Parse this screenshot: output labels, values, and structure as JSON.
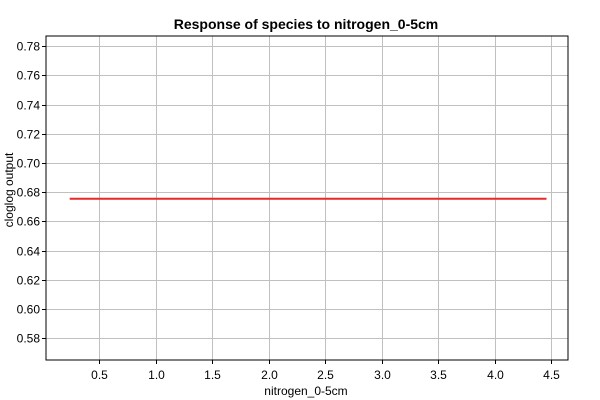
{
  "chart_data": {
    "type": "line",
    "title": "Response of species to nitrogen_0-5cm",
    "xlabel": "nitrogen_0-5cm",
    "ylabel": "cloglog output",
    "xlim": [
      0.03,
      4.65
    ],
    "ylim": [
      0.565,
      0.787
    ],
    "x_ticks": [
      0.5,
      1.0,
      1.5,
      2.0,
      2.5,
      3.0,
      3.5,
      4.0,
      4.5
    ],
    "x_tick_labels": [
      "0.5",
      "1.0",
      "1.5",
      "2.0",
      "2.5",
      "3.0",
      "3.5",
      "4.0",
      "4.5"
    ],
    "y_ticks": [
      0.58,
      0.6,
      0.62,
      0.64,
      0.66,
      0.68,
      0.7,
      0.72,
      0.74,
      0.76,
      0.78
    ],
    "y_tick_labels": [
      "0.58",
      "0.60",
      "0.62",
      "0.64",
      "0.66",
      "0.68",
      "0.70",
      "0.72",
      "0.74",
      "0.76",
      "0.78"
    ],
    "grid": true,
    "series": [
      {
        "color": "#e8282b",
        "x": [
          0.24,
          4.46
        ],
        "y": [
          0.6755,
          0.6755
        ]
      }
    ]
  }
}
